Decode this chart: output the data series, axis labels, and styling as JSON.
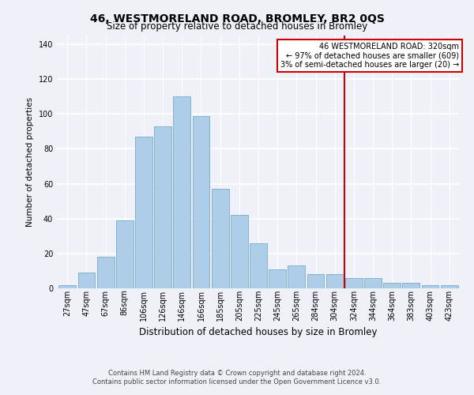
{
  "title": "46, WESTMORELAND ROAD, BROMLEY, BR2 0QS",
  "subtitle": "Size of property relative to detached houses in Bromley",
  "xlabel": "Distribution of detached houses by size in Bromley",
  "ylabel": "Number of detached properties",
  "bar_labels": [
    "27sqm",
    "47sqm",
    "67sqm",
    "86sqm",
    "106sqm",
    "126sqm",
    "146sqm",
    "166sqm",
    "185sqm",
    "205sqm",
    "225sqm",
    "245sqm",
    "265sqm",
    "284sqm",
    "304sqm",
    "324sqm",
    "344sqm",
    "364sqm",
    "383sqm",
    "403sqm",
    "423sqm"
  ],
  "bar_heights": [
    2,
    9,
    18,
    39,
    87,
    93,
    110,
    99,
    57,
    42,
    26,
    11,
    13,
    8,
    8,
    6,
    6,
    3,
    3,
    2,
    2
  ],
  "bar_color": "#aecde8",
  "bar_edge_color": "#7aaac8",
  "ylim": [
    0,
    145
  ],
  "yticks": [
    0,
    20,
    40,
    60,
    80,
    100,
    120,
    140
  ],
  "vline_color": "#cc0000",
  "annotation_line1": "46 WESTMORELAND ROAD: 320sqm",
  "annotation_line2": "← 97% of detached houses are smaller (609)",
  "annotation_line3": "3% of semi-detached houses are larger (20) →",
  "footer_line1": "Contains HM Land Registry data © Crown copyright and database right 2024.",
  "footer_line2": "Contains public sector information licensed under the Open Government Licence v3.0.",
  "background_color": "#eef2f8",
  "plot_bg_color": "#eef2f8",
  "grid_color": "#ffffff",
  "title_fontsize": 10,
  "subtitle_fontsize": 8.5,
  "xlabel_fontsize": 8.5,
  "ylabel_fontsize": 7.5,
  "tick_fontsize": 7,
  "annot_fontsize": 7,
  "footer_fontsize": 6
}
